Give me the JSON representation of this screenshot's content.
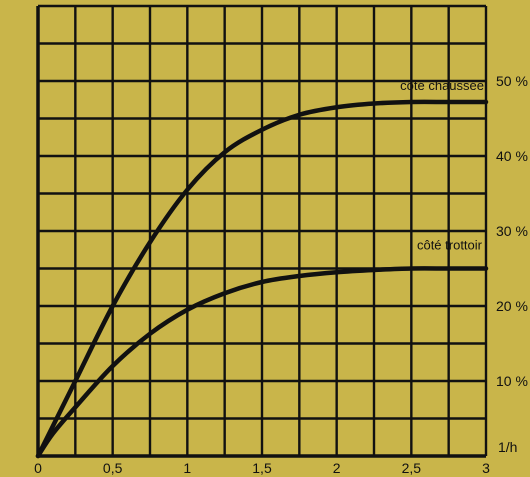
{
  "chart_data": {
    "type": "line",
    "x_ticks": [
      "0",
      "0,5",
      "1",
      "1,5",
      "2",
      "2,5",
      "3"
    ],
    "y_ticks": [
      {
        "value": 10,
        "label": "10 %"
      },
      {
        "value": 20,
        "label": "20 %"
      },
      {
        "value": 30,
        "label": "30 %"
      },
      {
        "value": 40,
        "label": "40 %"
      },
      {
        "value": 50,
        "label": "50 %"
      }
    ],
    "x_unit_label": "1/h",
    "xlim": [
      0,
      3
    ],
    "ylim": [
      0,
      60
    ],
    "grid": true,
    "colors": {
      "background": "#c9b54a",
      "ink": "#111111"
    },
    "series": [
      {
        "name": "côté chaussée",
        "x": [
          0,
          0.1,
          0.25,
          0.5,
          0.75,
          1,
          1.25,
          1.5,
          1.75,
          2,
          2.25,
          2.5,
          2.75,
          3
        ],
        "y": [
          0,
          4,
          10,
          20,
          28.5,
          35.5,
          40.5,
          43.5,
          45.5,
          46.5,
          47,
          47.2,
          47.2,
          47.2
        ]
      },
      {
        "name": "côté trottoir",
        "x": [
          0,
          0.1,
          0.25,
          0.5,
          0.75,
          1,
          1.25,
          1.5,
          1.75,
          2,
          2.25,
          2.5,
          2.75,
          3
        ],
        "y": [
          0,
          3,
          6.5,
          12,
          16.3,
          19.5,
          21.7,
          23.2,
          24,
          24.5,
          24.8,
          25,
          25,
          25
        ]
      }
    ]
  }
}
